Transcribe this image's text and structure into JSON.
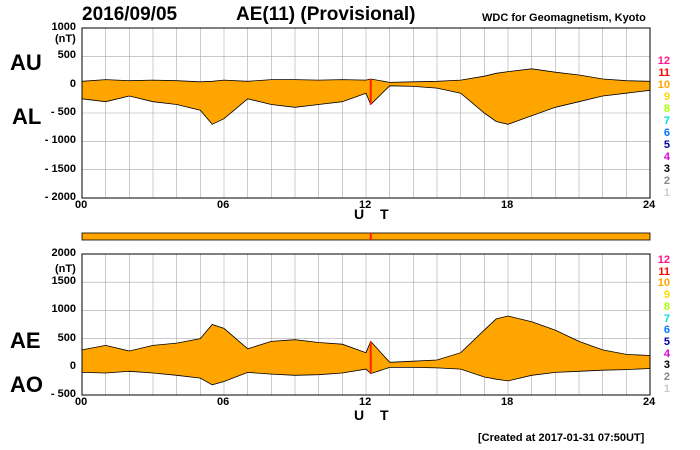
{
  "header": {
    "date": "2016/09/05",
    "title": "AE(11) (Provisional)",
    "source": "WDC for Geomagnetism, Kyoto"
  },
  "footer": {
    "created": "[Created at 2017-01-31 07:50UT]"
  },
  "colors": {
    "fill": "#ffa500",
    "highlight": "#ff2000",
    "grid": "#aaaaaa"
  },
  "legend": {
    "entries": [
      {
        "label": "12",
        "color": "#ff1493"
      },
      {
        "label": "11",
        "color": "#ff0000"
      },
      {
        "label": "10",
        "color": "#ffa500"
      },
      {
        "label": "9",
        "color": "#ffd700"
      },
      {
        "label": "8",
        "color": "#aaff00"
      },
      {
        "label": "7",
        "color": "#00dddd"
      },
      {
        "label": "6",
        "color": "#0077ff"
      },
      {
        "label": "5",
        "color": "#0000aa"
      },
      {
        "label": "4",
        "color": "#dd00dd"
      },
      {
        "label": "3",
        "color": "#000000"
      },
      {
        "label": "2",
        "color": "#888888"
      },
      {
        "label": "1",
        "color": "#cccccc"
      }
    ]
  },
  "chart_data": [
    {
      "type": "area",
      "upper_label": "AU",
      "lower_label": "AL",
      "unit": "(nT)",
      "xlabel": "U T",
      "xlim": [
        0,
        24
      ],
      "ylim": [
        -2000,
        1000
      ],
      "x_ticks": [
        "00",
        "06",
        "12",
        "18",
        "24"
      ],
      "y_ticks": [
        {
          "value": 1000,
          "label": "1000"
        },
        {
          "value": 500,
          "label": "500"
        },
        {
          "value": 0,
          "label": "0"
        },
        {
          "value": -500,
          "label": "- 500"
        },
        {
          "value": -1000,
          "label": "- 1000"
        },
        {
          "value": -1500,
          "label": "- 1500"
        },
        {
          "value": -2000,
          "label": "- 2000"
        }
      ],
      "grid": true,
      "x": [
        0,
        1,
        2,
        3,
        4,
        5,
        5.5,
        6,
        7,
        8,
        9,
        10,
        11,
        12,
        12.2,
        13,
        14,
        15,
        16,
        17,
        17.5,
        18,
        19,
        20,
        21,
        22,
        23,
        24
      ],
      "series": [
        {
          "name": "AU",
          "values": [
            60,
            90,
            70,
            80,
            70,
            50,
            60,
            80,
            60,
            90,
            90,
            80,
            90,
            80,
            100,
            40,
            50,
            60,
            80,
            150,
            200,
            230,
            280,
            220,
            170,
            100,
            70,
            60
          ]
        },
        {
          "name": "AL",
          "values": [
            -250,
            -300,
            -200,
            -300,
            -350,
            -450,
            -700,
            -600,
            -250,
            -350,
            -400,
            -350,
            -300,
            -150,
            -350,
            -20,
            -30,
            -60,
            -150,
            -500,
            -650,
            -700,
            -550,
            -400,
            -300,
            -200,
            -150,
            -100
          ]
        }
      ]
    },
    {
      "type": "area",
      "upper_label": "AE",
      "lower_label": "AO",
      "unit": "(nT)",
      "xlabel": "U T",
      "xlim": [
        0,
        24
      ],
      "ylim": [
        -500,
        2000
      ],
      "x_ticks": [
        "00",
        "06",
        "12",
        "18",
        "24"
      ],
      "y_ticks": [
        {
          "value": 2000,
          "label": "2000"
        },
        {
          "value": 1500,
          "label": "1500"
        },
        {
          "value": 1000,
          "label": "1000"
        },
        {
          "value": 500,
          "label": "500"
        },
        {
          "value": 0,
          "label": "0"
        },
        {
          "value": -500,
          "label": "- 500"
        }
      ],
      "grid": true,
      "x": [
        0,
        1,
        2,
        3,
        4,
        5,
        5.5,
        6,
        7,
        8,
        9,
        10,
        11,
        12,
        12.2,
        13,
        14,
        15,
        16,
        17,
        17.5,
        18,
        19,
        20,
        21,
        22,
        23,
        24
      ],
      "series": [
        {
          "name": "AE",
          "values": [
            300,
            380,
            280,
            380,
            420,
            500,
            750,
            680,
            320,
            450,
            480,
            430,
            400,
            250,
            450,
            80,
            100,
            120,
            250,
            650,
            850,
            900,
            800,
            650,
            450,
            300,
            220,
            200
          ]
        },
        {
          "name": "AO",
          "values": [
            -100,
            -110,
            -80,
            -110,
            -150,
            -200,
            -320,
            -260,
            -100,
            -130,
            -150,
            -140,
            -110,
            -40,
            -120,
            -10,
            -10,
            -20,
            -40,
            -180,
            -220,
            -250,
            -150,
            -100,
            -80,
            -60,
            -50,
            -30
          ]
        }
      ]
    }
  ]
}
